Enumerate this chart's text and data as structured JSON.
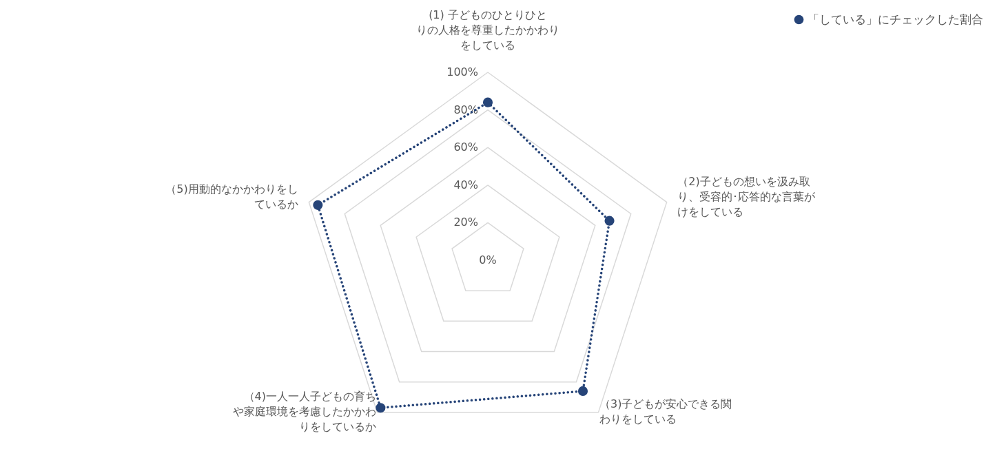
{
  "chart_data": {
    "type": "radar",
    "categories": [
      "(1) 子どものひとりひとりの人格を尊重したかかわりをしている",
      "（2)子どもの想いを汲み取り、受容的･応答的な言葉がけをしている",
      "（3)子どもが安心できる関わりをしている",
      "（4)一人一人子どもの育ちや家庭環境を考慮したかかわりをしているか",
      "（5)用動的なかかわりをしているか"
    ],
    "series": [
      {
        "name": "「している」にチェックした割合",
        "color": "#264478",
        "values": [
          84,
          68,
          86,
          97,
          95
        ]
      }
    ],
    "ylim": [
      0,
      100
    ],
    "yticks": [
      {
        "value": 0,
        "label": "0%"
      },
      {
        "value": 20,
        "label": "20%"
      },
      {
        "value": 40,
        "label": "40%"
      },
      {
        "value": 60,
        "label": "60%"
      },
      {
        "value": 80,
        "label": "80%"
      },
      {
        "value": 100,
        "label": "100%"
      }
    ],
    "grid": true,
    "legend": "top right",
    "marker": "circle",
    "line_style": "dotted"
  }
}
